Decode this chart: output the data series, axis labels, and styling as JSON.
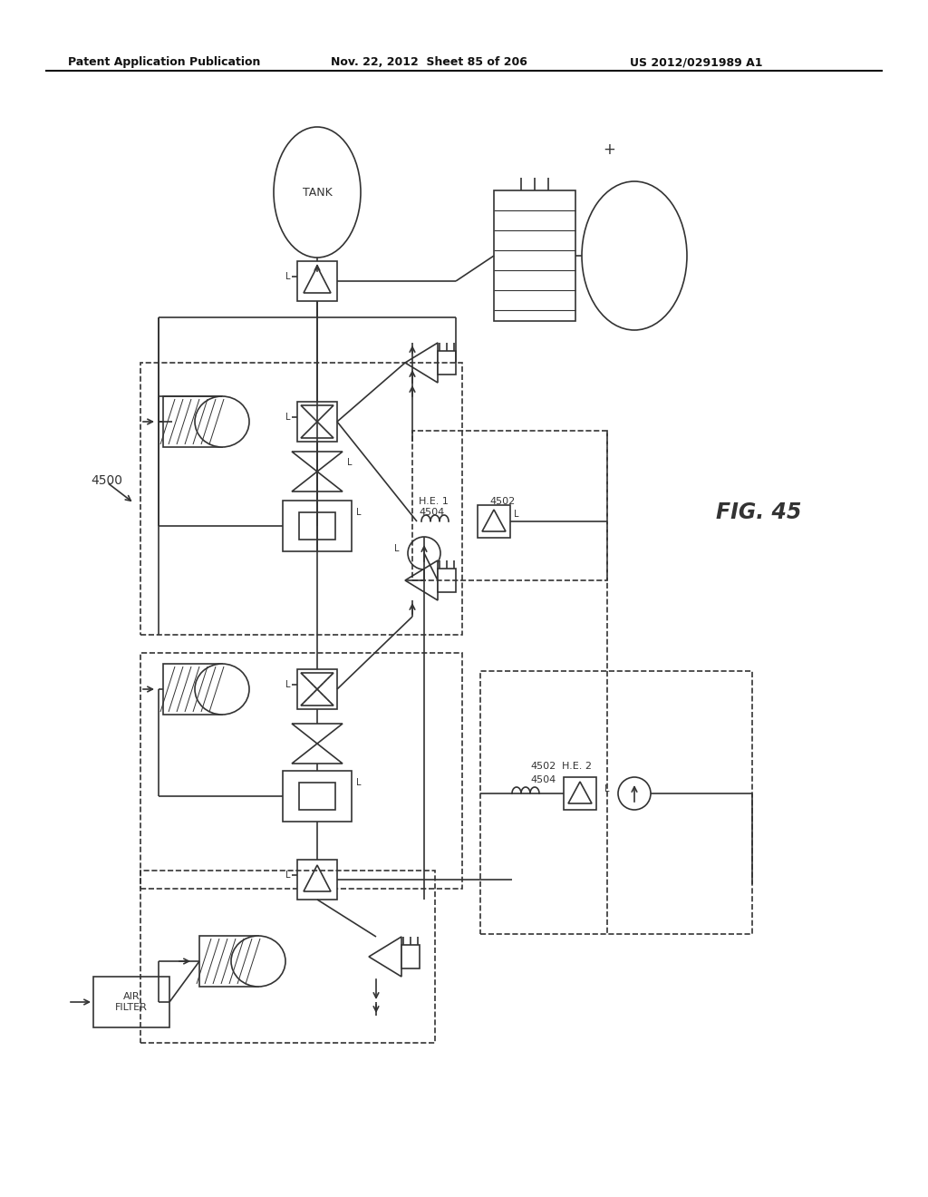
{
  "title_left": "Patent Application Publication",
  "title_mid": "Nov. 22, 2012  Sheet 85 of 206",
  "title_right": "US 2012/0291989 A1",
  "fig_label": "FIG. 45",
  "system_label": "4500",
  "label_4502_1": "4502",
  "label_4504_1": "4504",
  "label_HE1": "H.E. 1",
  "label_4502_2": "4502",
  "label_4504_2": "4504",
  "label_HE2": "H.E. 2",
  "label_TANK": "TANK",
  "label_AIR_FILTER": "AIR\nFILTER",
  "bg_color": "#ffffff",
  "line_color": "#333333",
  "line_width": 1.2
}
